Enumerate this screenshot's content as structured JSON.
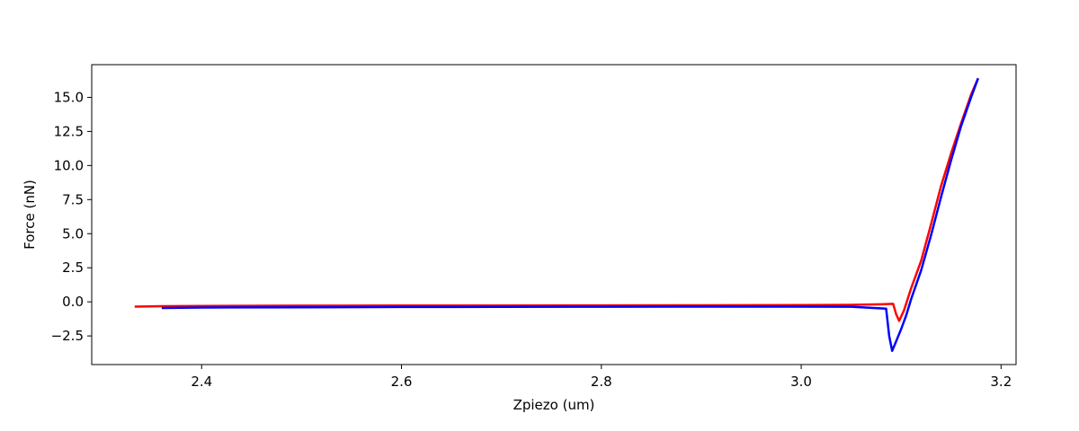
{
  "chart_data": {
    "type": "line",
    "title": "",
    "xlabel": "Zpiezo (um)",
    "ylabel": "Force (nN)",
    "xlim": [
      2.29,
      3.215
    ],
    "ylim": [
      -4.6,
      17.4
    ],
    "grid": false,
    "legend": "none",
    "xticks": [
      2.4,
      2.6,
      2.8,
      3.0,
      3.2
    ],
    "xtick_labels": [
      "2.4",
      "2.6",
      "2.8",
      "3.0",
      "3.2"
    ],
    "yticks": [
      -2.5,
      0.0,
      2.5,
      5.0,
      7.5,
      10.0,
      12.5,
      15.0
    ],
    "ytick_labels": [
      "−2.5",
      "0.0",
      "2.5",
      "5.0",
      "7.5",
      "10.0",
      "12.5",
      "15.0"
    ],
    "series": [
      {
        "color": "#ff0000",
        "x": [
          2.333,
          2.36,
          2.4,
          2.5,
          2.6,
          2.7,
          2.8,
          2.9,
          3.0,
          3.05,
          3.08,
          3.092,
          3.095,
          3.098,
          3.103,
          3.11,
          3.12,
          3.13,
          3.14,
          3.15,
          3.16,
          3.17,
          3.177
        ],
        "y": [
          -0.35,
          -0.32,
          -0.3,
          -0.28,
          -0.27,
          -0.27,
          -0.26,
          -0.25,
          -0.24,
          -0.22,
          -0.18,
          -0.15,
          -0.9,
          -1.4,
          -0.6,
          1.0,
          3.0,
          5.7,
          8.5,
          10.9,
          13.1,
          15.2,
          16.4
        ]
      },
      {
        "color": "#0000ff",
        "x": [
          2.36,
          2.4,
          2.5,
          2.6,
          2.7,
          2.8,
          2.9,
          3.0,
          3.05,
          3.085,
          3.088,
          3.091,
          3.095,
          3.1,
          3.105,
          3.11,
          3.12,
          3.13,
          3.14,
          3.15,
          3.16,
          3.17,
          3.177
        ],
        "y": [
          -0.45,
          -0.42,
          -0.4,
          -0.38,
          -0.37,
          -0.36,
          -0.35,
          -0.35,
          -0.36,
          -0.5,
          -2.5,
          -3.6,
          -2.9,
          -2.0,
          -1.0,
          0.2,
          2.3,
          4.9,
          7.7,
          10.4,
          12.9,
          15.0,
          16.4
        ]
      }
    ]
  }
}
